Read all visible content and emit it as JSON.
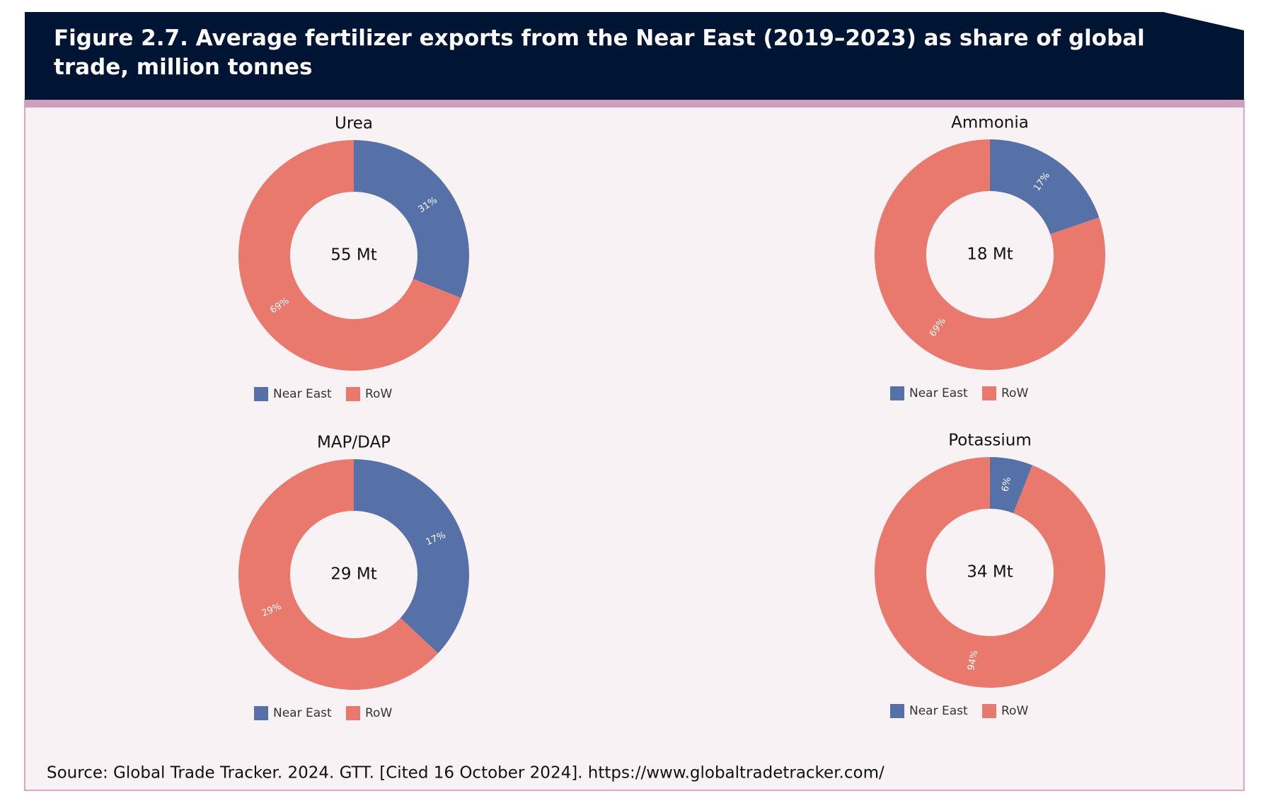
{
  "title": "Figure 2.7. Average fertilizer exports from the Near East (2019–2023) as share of global trade, million tonnes",
  "source": "Source: Global Trade Tracker. 2024. GTT. [Cited 16 October 2024]. https://www.globaltradetracker.com/",
  "chart_data": [
    {
      "type": "donut",
      "title": "Urea",
      "center_label": "55 Mt",
      "categories": [
        "Near East",
        "RoW"
      ],
      "values": [
        31,
        69
      ],
      "value_labels": [
        "31%",
        "69%"
      ],
      "colors": [
        "#5670a8",
        "#e8796c"
      ]
    },
    {
      "type": "donut",
      "title": "Ammonia",
      "center_label": "18 Mt",
      "categories": [
        "Near East",
        "RoW"
      ],
      "values": [
        17,
        69
      ],
      "value_labels": [
        "17%",
        "69%"
      ],
      "colors": [
        "#5670a8",
        "#e8796c"
      ]
    },
    {
      "type": "donut",
      "title": "MAP/DAP",
      "center_label": "29 Mt",
      "categories": [
        "Near East",
        "RoW"
      ],
      "values": [
        17,
        29
      ],
      "value_labels": [
        "17%",
        "29%"
      ],
      "colors": [
        "#5670a8",
        "#e8796c"
      ]
    },
    {
      "type": "donut",
      "title": "Potassium",
      "center_label": "34 Mt",
      "categories": [
        "Near East",
        "RoW"
      ],
      "values": [
        6,
        94
      ],
      "value_labels": [
        "6%",
        "94%"
      ],
      "colors": [
        "#5670a8",
        "#e8796c"
      ]
    }
  ]
}
